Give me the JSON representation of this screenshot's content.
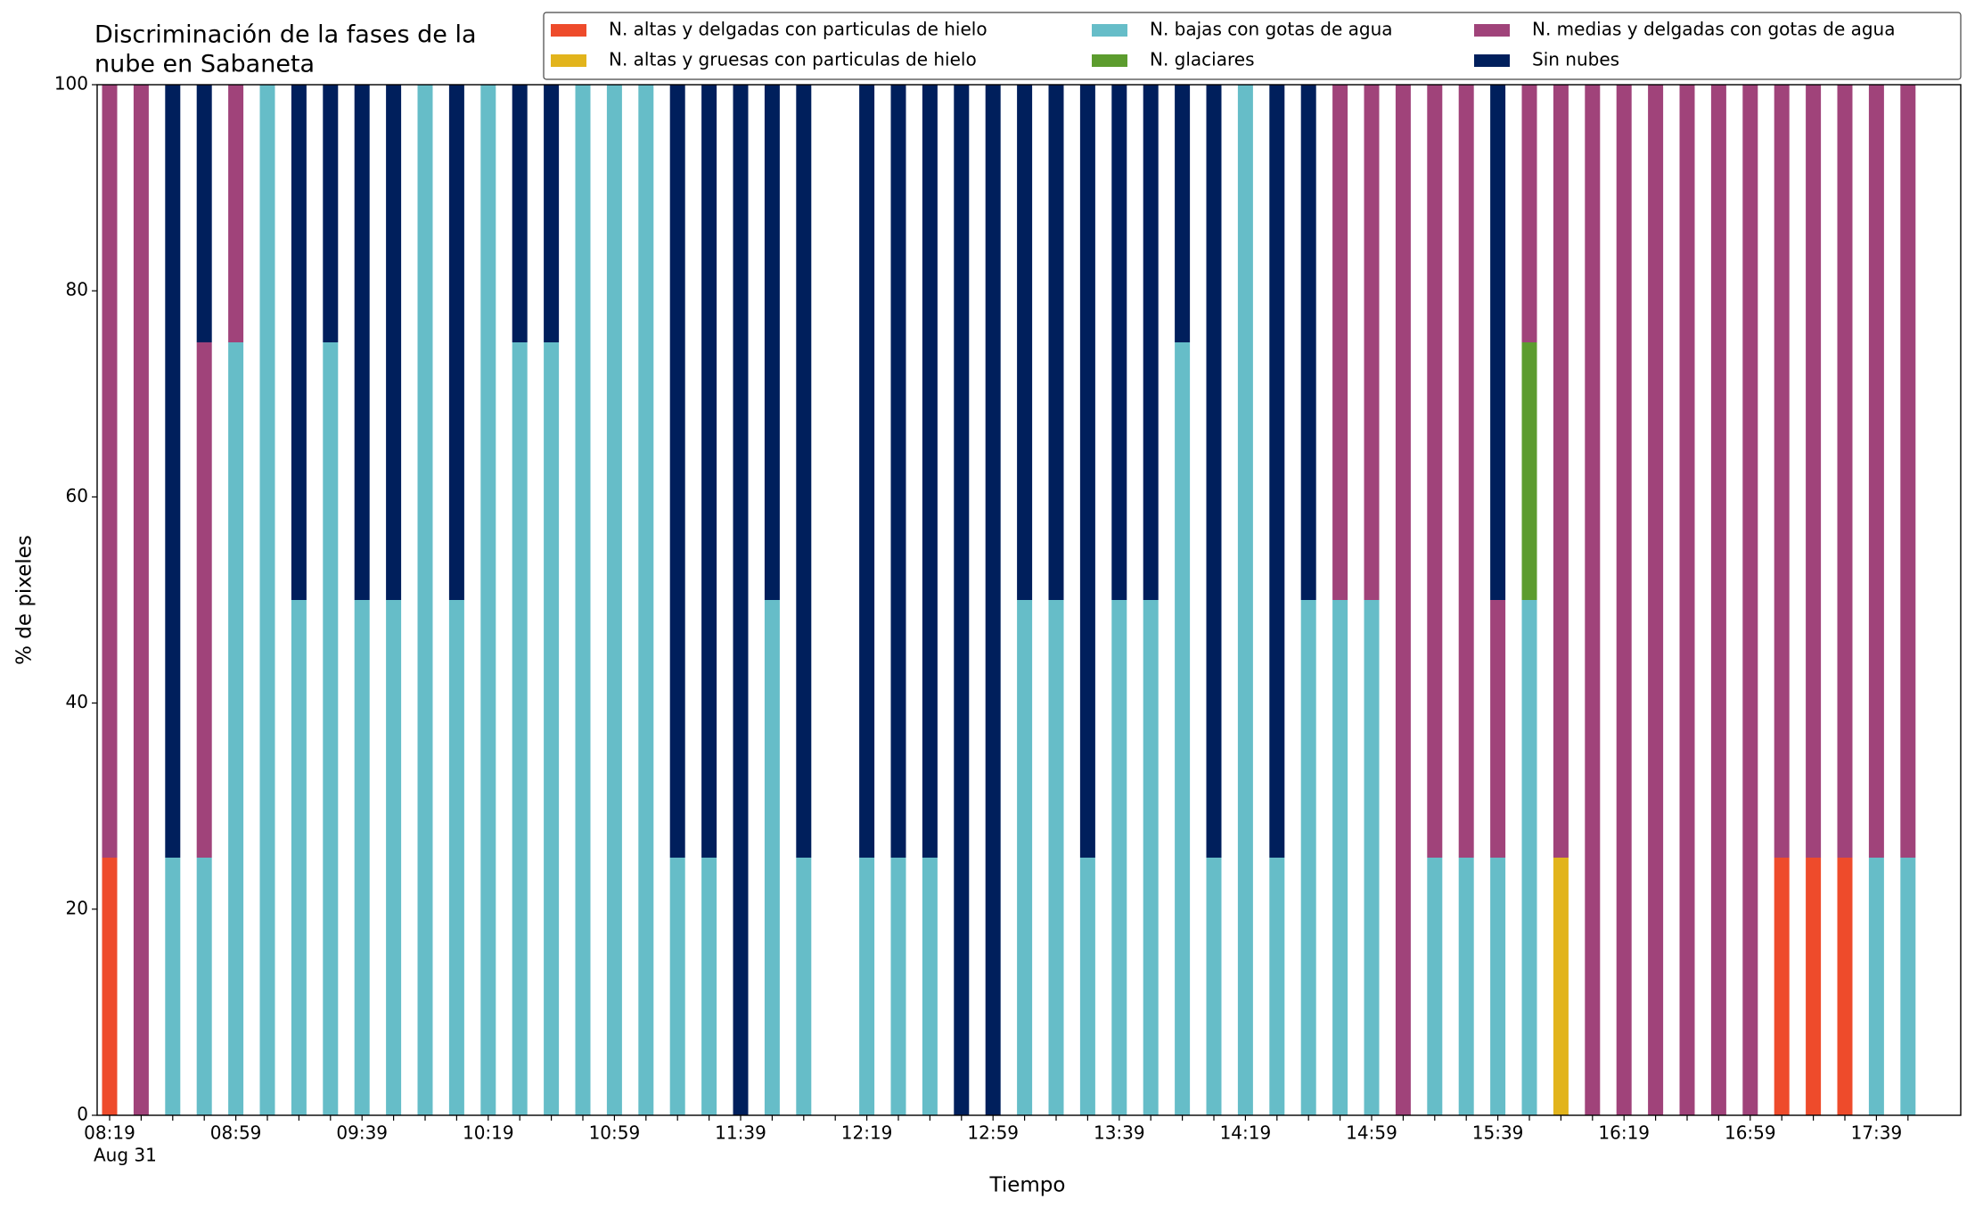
{
  "chart_data": {
    "type": "stacked_bar",
    "title": [
      "Discriminación de la fases de la",
      "nube en Sabaneta"
    ],
    "xlabel": "Tiempo",
    "ylabel": "% de pixeles",
    "date_label": "Aug 31",
    "categories": [
      "08:19",
      null,
      null,
      null,
      "08:59",
      null,
      null,
      null,
      "09:39",
      null,
      null,
      null,
      "10:19",
      null,
      null,
      null,
      "10:59",
      null,
      null,
      null,
      "11:39",
      null,
      null,
      null,
      "12:19",
      null,
      null,
      null,
      "12:59",
      null,
      null,
      null,
      "13:39",
      null,
      null,
      null,
      "14:19",
      null,
      null,
      null,
      "14:59",
      null,
      null,
      null,
      "15:39",
      null,
      null,
      null,
      "16:19",
      null,
      null,
      null,
      "16:59",
      null,
      null,
      null,
      "17:39",
      null
    ],
    "series": [
      {
        "name": "N. altas y delgadas con particulas de hielo",
        "color": "#ee4b2b",
        "values": [
          25,
          0,
          0,
          0,
          0,
          0,
          0,
          0,
          0,
          0,
          0,
          0,
          0,
          0,
          0,
          0,
          0,
          0,
          0,
          0,
          0,
          0,
          0,
          null,
          0,
          0,
          0,
          0,
          0,
          0,
          0,
          0,
          0,
          0,
          0,
          0,
          0,
          0,
          0,
          0,
          0,
          0,
          0,
          0,
          0,
          0,
          0,
          0,
          0,
          0,
          0,
          0,
          0,
          25,
          25,
          25,
          0,
          0
        ]
      },
      {
        "name": "N. altas y gruesas con particulas de hielo",
        "color": "#e2b41c",
        "values": [
          0,
          0,
          0,
          0,
          0,
          0,
          0,
          0,
          0,
          0,
          0,
          0,
          0,
          0,
          0,
          0,
          0,
          0,
          0,
          0,
          0,
          0,
          0,
          null,
          0,
          0,
          0,
          0,
          0,
          0,
          0,
          0,
          0,
          0,
          0,
          0,
          0,
          0,
          0,
          0,
          0,
          0,
          0,
          0,
          0,
          0,
          25,
          0,
          0,
          0,
          0,
          0,
          0,
          0,
          0,
          0,
          0,
          0
        ]
      },
      {
        "name": "N. bajas con gotas de agua",
        "color": "#66bdc8",
        "values": [
          0,
          0,
          25,
          25,
          75,
          100,
          50,
          75,
          50,
          50,
          100,
          50,
          100,
          75,
          75,
          100,
          100,
          100,
          25,
          25,
          0,
          50,
          25,
          null,
          25,
          25,
          25,
          0,
          0,
          50,
          50,
          25,
          50,
          50,
          75,
          25,
          100,
          25,
          50,
          50,
          50,
          0,
          25,
          25,
          25,
          50,
          0,
          0,
          0,
          0,
          0,
          0,
          0,
          0,
          0,
          0,
          25,
          25
        ]
      },
      {
        "name": "N. glaciares",
        "color": "#5c9c2e",
        "values": [
          0,
          0,
          0,
          0,
          0,
          0,
          0,
          0,
          0,
          0,
          0,
          0,
          0,
          0,
          0,
          0,
          0,
          0,
          0,
          0,
          0,
          0,
          0,
          null,
          0,
          0,
          0,
          0,
          0,
          0,
          0,
          0,
          0,
          0,
          0,
          0,
          0,
          0,
          0,
          0,
          0,
          0,
          0,
          0,
          0,
          25,
          0,
          0,
          0,
          0,
          0,
          0,
          0,
          0,
          0,
          0,
          0,
          0
        ]
      },
      {
        "name": "N. medias y delgadas con gotas de agua",
        "color": "#a0437a",
        "values": [
          75,
          100,
          0,
          50,
          25,
          0,
          0,
          0,
          0,
          0,
          0,
          0,
          0,
          0,
          0,
          0,
          0,
          0,
          0,
          0,
          0,
          0,
          0,
          null,
          0,
          0,
          0,
          0,
          0,
          0,
          0,
          0,
          0,
          0,
          0,
          0,
          0,
          0,
          0,
          50,
          50,
          100,
          75,
          75,
          25,
          25,
          75,
          100,
          100,
          100,
          100,
          100,
          100,
          75,
          75,
          75,
          75,
          75
        ]
      },
      {
        "name": "Sin nubes",
        "color": "#001f5c",
        "values": [
          0,
          0,
          75,
          25,
          0,
          0,
          50,
          25,
          50,
          50,
          0,
          50,
          0,
          25,
          25,
          0,
          0,
          0,
          75,
          75,
          100,
          50,
          75,
          null,
          75,
          75,
          75,
          100,
          100,
          50,
          50,
          75,
          50,
          50,
          25,
          75,
          0,
          75,
          50,
          0,
          0,
          0,
          0,
          0,
          50,
          0,
          0,
          0,
          0,
          0,
          0,
          0,
          0,
          0,
          0,
          0,
          0,
          0
        ]
      }
    ],
    "ylim": [
      0,
      100
    ],
    "yticks": [
      0,
      20,
      40,
      60,
      80,
      100
    ],
    "legend": "upper right"
  }
}
